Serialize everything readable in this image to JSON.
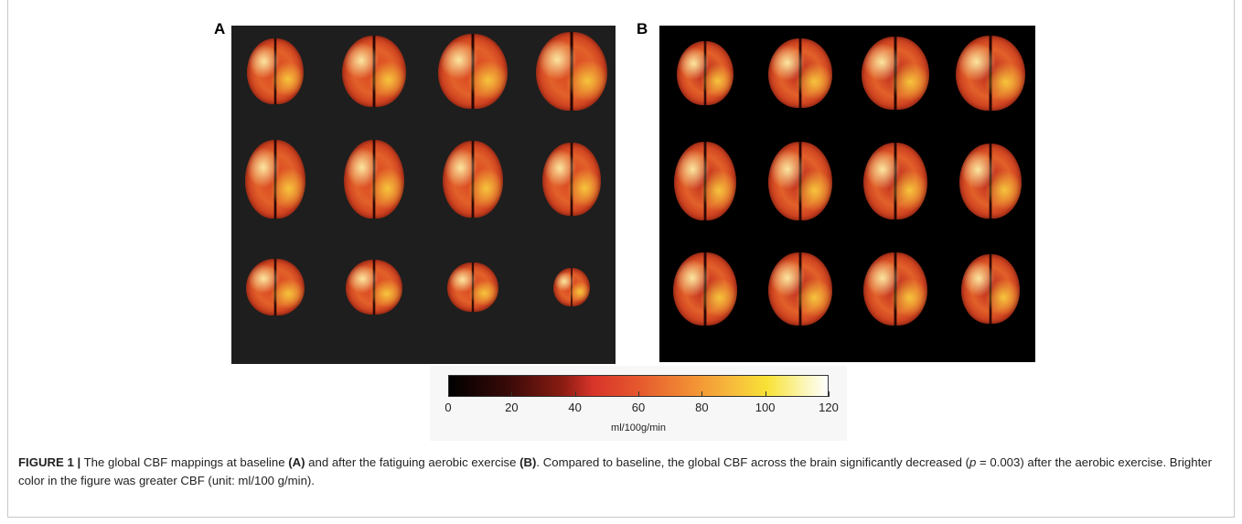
{
  "panels": [
    {
      "label": "A",
      "background": "#1e1e1e"
    },
    {
      "label": "B",
      "background": "#000000"
    }
  ],
  "colorbar": {
    "ticks": [
      "0",
      "20",
      "40",
      "60",
      "80",
      "100",
      "120"
    ],
    "tick_values": [
      0,
      20,
      40,
      60,
      80,
      100,
      120
    ],
    "range": [
      0,
      120
    ],
    "unit": "ml/100g/min"
  },
  "caption": {
    "figure_label": "FIGURE 1 |",
    "text_1": " The global CBF mappings at baseline ",
    "ref_a": "(A)",
    "text_2": " and after the fatiguing aerobic exercise ",
    "ref_b": "(B)",
    "text_3": ". Compared to baseline, the global CBF across the brain significantly decreased (",
    "p_symbol": "p",
    "text_4": " = 0.003) after the aerobic exercise. Brighter color in the figure was greater CBF (unit: ml/100 g/min)."
  }
}
